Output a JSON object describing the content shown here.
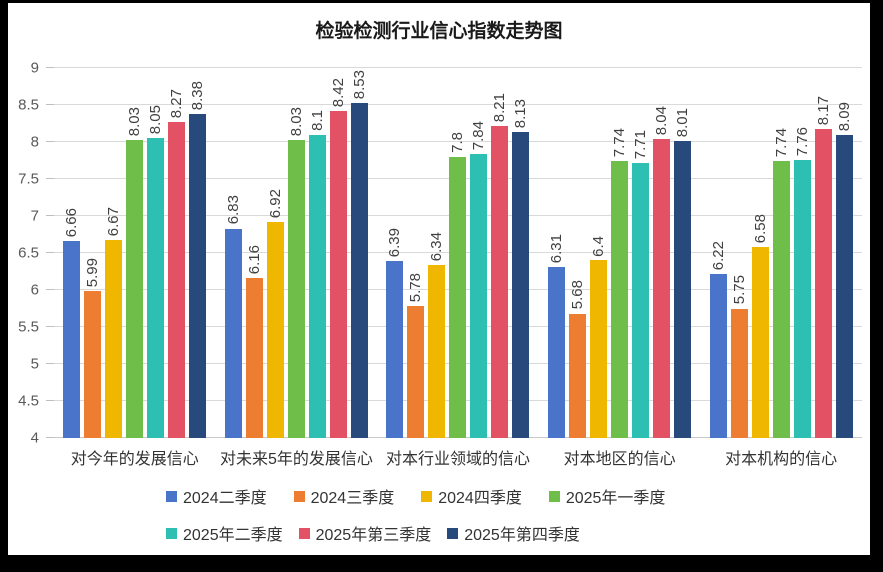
{
  "frame": {
    "border_color": "#000000",
    "canvas_color": "#ffffff"
  },
  "chart_data": {
    "type": "bar",
    "title": "检验检测行业信心指数走势图",
    "categories": [
      "对今年的发展信心",
      "对未来5年的发展信心",
      "对本行业领域的信心",
      "对本地区的信心",
      "对本机构的信心"
    ],
    "series": [
      {
        "name": "2024二季度",
        "color": "#4a74c9",
        "values": [
          6.66,
          6.83,
          6.39,
          6.31,
          6.22
        ]
      },
      {
        "name": "2024三季度",
        "color": "#ed7d31",
        "values": [
          5.99,
          6.16,
          5.78,
          5.68,
          5.75
        ]
      },
      {
        "name": "2024四季度",
        "color": "#efb700",
        "values": [
          6.67,
          6.92,
          6.34,
          6.4,
          6.58
        ]
      },
      {
        "name": "2025年一季度",
        "color": "#70be4a",
        "values": [
          8.03,
          8.03,
          7.8,
          7.74,
          7.74
        ]
      },
      {
        "name": "2025年二季度",
        "color": "#2ebfb3",
        "values": [
          8.05,
          8.1,
          7.84,
          7.71,
          7.76
        ]
      },
      {
        "name": "2025年第三季度",
        "color": "#e25264",
        "values": [
          8.27,
          8.42,
          8.21,
          8.04,
          8.17
        ]
      },
      {
        "name": "2025年第四季度",
        "color": "#27497b",
        "values": [
          8.38,
          8.53,
          8.13,
          8.01,
          8.09
        ]
      }
    ],
    "ylim": [
      4,
      9
    ],
    "ytick_step": 0.5,
    "ytick_labels": [
      "4",
      "4.5",
      "5",
      "5.5",
      "6",
      "6.5",
      "7",
      "7.5",
      "8",
      "8.5",
      "9"
    ],
    "grid": true,
    "data_labels": true,
    "data_label_orientation": "rotated-90",
    "legend_position": "bottom",
    "legend_rows": [
      [
        0,
        1,
        2,
        3
      ],
      [
        4,
        5,
        6
      ]
    ],
    "colors": {
      "gridline": "#d9d9d9",
      "axis_label": "#595959",
      "data_label": "#404040",
      "category_label": "#333333",
      "legend_label": "#333333",
      "title": "#1a1a1a"
    }
  }
}
